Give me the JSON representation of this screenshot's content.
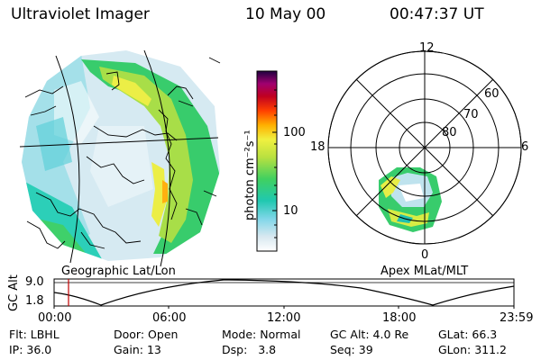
{
  "header": {
    "instrument": "Ultraviolet Imager",
    "date": "10 May 00",
    "time": "00:47:37 UT"
  },
  "colorbar": {
    "unit_label": "photon cm⁻²s⁻¹",
    "ticks": [
      "100",
      "10"
    ]
  },
  "left_panel": {
    "caption": "Geographic Lat/Lon"
  },
  "right_panel": {
    "caption": "Apex MLat/MLT",
    "mlt_labels": {
      "top": "12",
      "left": "18",
      "right": "6",
      "bottom": "0"
    },
    "lat_labels": [
      "60",
      "70",
      "80"
    ]
  },
  "altitude_plot": {
    "ylabel": "GC Alt",
    "yticks": [
      "9.0",
      "1.8"
    ],
    "xticks": [
      "00:00",
      "06:00",
      "12:00",
      "18:00",
      "23:59"
    ],
    "marker_color": "#c00000"
  },
  "footer": {
    "row1": [
      {
        "key": "Flt:",
        "value": "LBHL"
      },
      {
        "key": "Door:",
        "value": "Open"
      },
      {
        "key": "Mode:",
        "value": "Normal"
      },
      {
        "key": "GC Alt:",
        "value": "4.0 Re"
      },
      {
        "key": "GLat:",
        "value": "66.3"
      }
    ],
    "row2": [
      {
        "key": "IP:",
        "value": "36.0"
      },
      {
        "key": "Gain:",
        "value": "13"
      },
      {
        "key": "Dsp:",
        "value": "3.8"
      },
      {
        "key": "Seq:",
        "value": "39"
      },
      {
        "key": "GLon:",
        "value": "311.2"
      }
    ]
  }
}
